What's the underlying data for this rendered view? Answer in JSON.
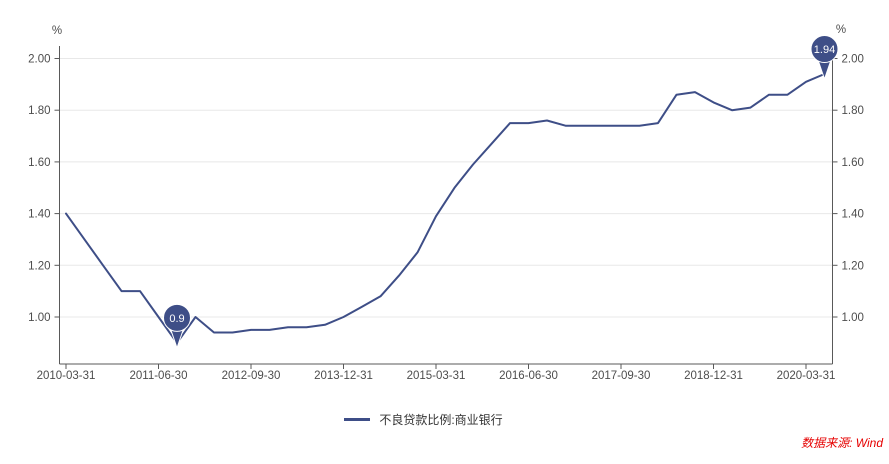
{
  "chart_data": {
    "type": "line",
    "title": "",
    "unit_label_left": "%",
    "unit_label_right": "%",
    "x": [
      "2010-03-31",
      "2010-06-30",
      "2010-09-30",
      "2010-12-31",
      "2011-03-31",
      "2011-06-30",
      "2011-09-30",
      "2011-12-31",
      "2012-03-31",
      "2012-06-30",
      "2012-09-30",
      "2012-12-31",
      "2013-03-31",
      "2013-06-30",
      "2013-09-30",
      "2013-12-31",
      "2014-03-31",
      "2014-06-30",
      "2014-09-30",
      "2014-12-31",
      "2015-03-31",
      "2015-06-30",
      "2015-09-30",
      "2015-12-31",
      "2016-03-31",
      "2016-06-30",
      "2016-09-30",
      "2016-12-31",
      "2017-03-31",
      "2017-06-30",
      "2017-09-30",
      "2017-12-31",
      "2018-03-31",
      "2018-06-30",
      "2018-09-30",
      "2018-12-31",
      "2019-03-31",
      "2019-06-30",
      "2019-09-30",
      "2019-12-31",
      "2020-03-31",
      "2020-06-30"
    ],
    "series": [
      {
        "name": "不良贷款比例:商业银行",
        "values": [
          1.4,
          1.3,
          1.2,
          1.1,
          1.1,
          1.0,
          0.9,
          1.0,
          0.94,
          0.94,
          0.95,
          0.95,
          0.96,
          0.96,
          0.97,
          1.0,
          1.04,
          1.08,
          1.16,
          1.25,
          1.39,
          1.5,
          1.59,
          1.67,
          1.75,
          1.75,
          1.76,
          1.74,
          1.74,
          1.74,
          1.74,
          1.74,
          1.75,
          1.86,
          1.87,
          1.83,
          1.8,
          1.81,
          1.86,
          1.86,
          1.91,
          1.94
        ]
      }
    ],
    "x_tick_labels": [
      "2010-03-31",
      "2011-06-30",
      "2012-09-30",
      "2013-12-31",
      "2015-03-31",
      "2016-06-30",
      "2017-09-30",
      "2018-12-31",
      "2020-03-31"
    ],
    "y_tick_values": [
      1.0,
      1.2,
      1.4,
      1.6,
      1.8,
      2.0
    ],
    "y_tick_labels": [
      "1.00",
      "1.20",
      "1.40",
      "1.60",
      "1.80",
      "2.00"
    ],
    "ylim": [
      0.8,
      2.04
    ],
    "grid": "horizontal",
    "legend_position": "bottom-center",
    "annotations": [
      {
        "date": "2011-09-30",
        "value": 0.9,
        "label": "0.9"
      },
      {
        "date": "2020-06-30",
        "value": 1.94,
        "label": "1.94"
      }
    ]
  },
  "legend": {
    "label": "不良贷款比例:商业银行"
  },
  "source_note": "数据来源: Wind",
  "colors": {
    "line": "#3e4e87",
    "marker": "#3e4e87",
    "marker_text": "#ffffff",
    "grid": "#e8e8e8",
    "axis": "#595959",
    "tick_text": "#4d4d4d",
    "legend_text": "#333333",
    "source": "#e60000",
    "background": "#ffffff"
  }
}
